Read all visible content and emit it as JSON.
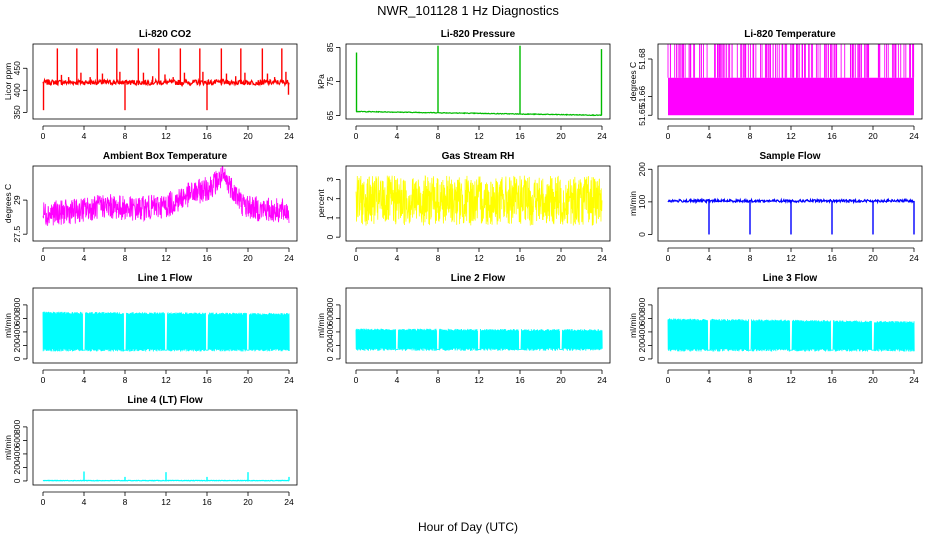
{
  "page": {
    "title": "NWR_101128  1 Hz Diagnostics",
    "xlabel": "Hour of Day (UTC)"
  },
  "chart_data": [
    {
      "id": "co2",
      "type": "line",
      "title": "Li-820 CO2",
      "ylabel": "Licor ppm",
      "color": "#ff0000",
      "xlim": [
        0,
        24
      ],
      "xticks": [
        0,
        4,
        8,
        12,
        16,
        20,
        24
      ],
      "ylim": [
        335,
        505
      ],
      "yticks": [
        350,
        400,
        450
      ],
      "baseline": 418,
      "noise": 6,
      "spikes": [
        {
          "x": 0.05,
          "y": 355
        },
        {
          "x": 0.5,
          "y": 425
        },
        {
          "x": 1.4,
          "y": 495
        },
        {
          "x": 1.8,
          "y": 435
        },
        {
          "x": 2.5,
          "y": 430
        },
        {
          "x": 3.3,
          "y": 495
        },
        {
          "x": 3.7,
          "y": 440
        },
        {
          "x": 4.6,
          "y": 430
        },
        {
          "x": 5.3,
          "y": 495
        },
        {
          "x": 5.8,
          "y": 438
        },
        {
          "x": 7.2,
          "y": 495
        },
        {
          "x": 7.5,
          "y": 442
        },
        {
          "x": 8.0,
          "y": 355
        },
        {
          "x": 9.3,
          "y": 495
        },
        {
          "x": 9.8,
          "y": 440
        },
        {
          "x": 10.7,
          "y": 432
        },
        {
          "x": 11.3,
          "y": 495
        },
        {
          "x": 11.9,
          "y": 436
        },
        {
          "x": 12.7,
          "y": 430
        },
        {
          "x": 13.4,
          "y": 495
        },
        {
          "x": 13.8,
          "y": 440
        },
        {
          "x": 15.3,
          "y": 495
        },
        {
          "x": 15.6,
          "y": 442
        },
        {
          "x": 16.0,
          "y": 355
        },
        {
          "x": 17.4,
          "y": 495
        },
        {
          "x": 17.9,
          "y": 438
        },
        {
          "x": 18.8,
          "y": 432
        },
        {
          "x": 19.3,
          "y": 495
        },
        {
          "x": 19.7,
          "y": 440
        },
        {
          "x": 21.4,
          "y": 495
        },
        {
          "x": 21.9,
          "y": 438
        },
        {
          "x": 22.6,
          "y": 430
        },
        {
          "x": 23.3,
          "y": 495
        },
        {
          "x": 23.7,
          "y": 442
        },
        {
          "x": 23.95,
          "y": 390
        }
      ]
    },
    {
      "id": "pressure",
      "type": "line",
      "title": "Li-820 Pressure",
      "ylabel": "kPa",
      "color": "#00bb00",
      "xlim": [
        0,
        24
      ],
      "xticks": [
        0,
        4,
        8,
        12,
        16,
        20,
        24
      ],
      "ylim": [
        64,
        86
      ],
      "yticks": [
        65,
        75,
        85
      ],
      "baseline_start": 66.2,
      "baseline_end": 65.1,
      "spikes": [
        {
          "x": 0.05,
          "y": 83.5
        },
        {
          "x": 8.0,
          "y": 85.5
        },
        {
          "x": 16.0,
          "y": 85.5
        },
        {
          "x": 23.95,
          "y": 84.5
        }
      ]
    },
    {
      "id": "li820temp",
      "type": "line",
      "title": "Li-820 Temperature",
      "ylabel": "degrees C",
      "color": "#ff00ff",
      "xlim": [
        0,
        24
      ],
      "xticks": [
        0,
        4,
        8,
        12,
        16,
        20,
        24
      ],
      "ylim": [
        51.648,
        51.688
      ],
      "yticks": [
        51.65,
        51.66,
        51.68
      ],
      "levels": [
        51.65,
        51.67,
        51.69
      ]
    },
    {
      "id": "boxtemp",
      "type": "line",
      "title": "Ambient Box Temperature",
      "ylabel": "degrees C",
      "color": "#ff00ff",
      "xlim": [
        0,
        24
      ],
      "xticks": [
        0,
        4,
        8,
        12,
        16,
        20,
        24
      ],
      "ylim": [
        27.2,
        30.5
      ],
      "yticks": [
        27.5,
        29.0
      ],
      "profile": [
        {
          "x": 0,
          "y": 28.4
        },
        {
          "x": 3,
          "y": 28.5
        },
        {
          "x": 6,
          "y": 28.75
        },
        {
          "x": 9,
          "y": 28.6
        },
        {
          "x": 12,
          "y": 28.75
        },
        {
          "x": 14,
          "y": 29.2
        },
        {
          "x": 16,
          "y": 29.5
        },
        {
          "x": 17.5,
          "y": 30.0
        },
        {
          "x": 18.2,
          "y": 29.7
        },
        {
          "x": 19.5,
          "y": 28.8
        },
        {
          "x": 21,
          "y": 28.6
        },
        {
          "x": 24,
          "y": 28.5
        }
      ],
      "noise": 0.55
    },
    {
      "id": "rh",
      "type": "line",
      "title": "Gas Stream RH",
      "ylabel": "percent",
      "color": "#ffff00",
      "xlim": [
        0,
        24
      ],
      "xticks": [
        0,
        4,
        8,
        12,
        16,
        20,
        24
      ],
      "ylim": [
        -0.2,
        3.7
      ],
      "yticks": [
        0,
        1,
        2,
        3
      ],
      "baseline": 1.9,
      "noise": 1.3
    },
    {
      "id": "sampleflow",
      "type": "line",
      "title": "Sample Flow",
      "ylabel": "ml/min",
      "color": "#0000ff",
      "xlim": [
        0,
        24
      ],
      "xticks": [
        0,
        4,
        8,
        12,
        16,
        20,
        24
      ],
      "ylim": [
        -20,
        210
      ],
      "yticks": [
        0,
        100,
        200
      ],
      "baseline": 103,
      "noise": 4,
      "spikes": [
        {
          "x": 4.0,
          "y": 0
        },
        {
          "x": 8.0,
          "y": 0
        },
        {
          "x": 12.0,
          "y": 0
        },
        {
          "x": 16.0,
          "y": 0
        },
        {
          "x": 20.0,
          "y": 0
        },
        {
          "x": 24.0,
          "y": 0
        }
      ]
    },
    {
      "id": "line1",
      "type": "line",
      "title": "Line 1 Flow",
      "ylabel": "ml/min",
      "color": "#00ffff",
      "xlim": [
        0,
        24
      ],
      "xticks": [
        0,
        4,
        8,
        12,
        16,
        20,
        24
      ],
      "ylim": [
        -60,
        1050
      ],
      "yticks": [
        0,
        200,
        400,
        600,
        800
      ],
      "band_low": 110,
      "band_high_start": 700,
      "band_high_end": 680,
      "gaps": [
        4,
        8,
        12,
        16,
        20
      ]
    },
    {
      "id": "line2",
      "type": "line",
      "title": "Line 2 Flow",
      "ylabel": "ml/min",
      "color": "#00ffff",
      "xlim": [
        0,
        24
      ],
      "xticks": [
        0,
        4,
        8,
        12,
        16,
        20,
        24
      ],
      "ylim": [
        -60,
        1050
      ],
      "yticks": [
        0,
        200,
        400,
        600,
        800
      ],
      "band_low": 120,
      "band_high_start": 450,
      "band_high_end": 440,
      "gaps": [
        4,
        8,
        12,
        16,
        20
      ]
    },
    {
      "id": "line3",
      "type": "line",
      "title": "Line 3 Flow",
      "ylabel": "ml/min",
      "color": "#00ffff",
      "xlim": [
        0,
        24
      ],
      "xticks": [
        0,
        4,
        8,
        12,
        16,
        20,
        24
      ],
      "ylim": [
        -60,
        1050
      ],
      "yticks": [
        0,
        200,
        400,
        600,
        800
      ],
      "band_low": 110,
      "band_high_start": 600,
      "band_high_end": 560,
      "gaps": [
        4,
        8,
        12,
        16,
        20
      ]
    },
    {
      "id": "line4",
      "type": "line",
      "title": "Line 4 (LT) Flow",
      "ylabel": "ml/min",
      "color": "#00ffff",
      "xlim": [
        0,
        24
      ],
      "xticks": [
        0,
        4,
        8,
        12,
        16,
        20,
        24
      ],
      "ylim": [
        -60,
        1050
      ],
      "yticks": [
        0,
        200,
        400,
        600,
        800
      ],
      "baseline": 5,
      "noise": 4,
      "spikes": [
        {
          "x": 4.0,
          "y": 140
        },
        {
          "x": 8.0,
          "y": 60
        },
        {
          "x": 12.0,
          "y": 130
        },
        {
          "x": 16.0,
          "y": 60
        },
        {
          "x": 20.0,
          "y": 130
        },
        {
          "x": 24.0,
          "y": 60
        }
      ]
    }
  ]
}
